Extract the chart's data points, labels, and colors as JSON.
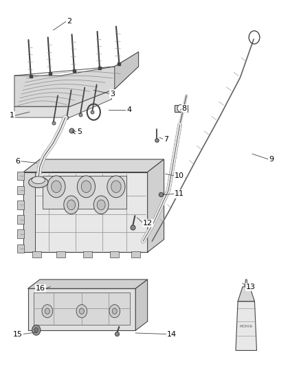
{
  "bg_color": "#ffffff",
  "lc": "#444444",
  "lc2": "#888888",
  "figsize": [
    4.38,
    5.33
  ],
  "dpi": 100,
  "label_positions": {
    "1": [
      0.045,
      0.685,
      0.095,
      0.695
    ],
    "2": [
      0.22,
      0.945,
      0.175,
      0.92
    ],
    "3": [
      0.365,
      0.745,
      0.31,
      0.755
    ],
    "4": [
      0.42,
      0.7,
      0.36,
      0.7
    ],
    "5": [
      0.255,
      0.64,
      0.24,
      0.645
    ],
    "6": [
      0.065,
      0.56,
      0.12,
      0.555
    ],
    "7": [
      0.545,
      0.62,
      0.53,
      0.625
    ],
    "8": [
      0.605,
      0.705,
      0.6,
      0.7
    ],
    "9": [
      0.895,
      0.565,
      0.84,
      0.58
    ],
    "10": [
      0.58,
      0.52,
      0.55,
      0.525
    ],
    "11": [
      0.58,
      0.47,
      0.545,
      0.468
    ],
    "12": [
      0.475,
      0.39,
      0.455,
      0.405
    ],
    "13": [
      0.82,
      0.215,
      0.808,
      0.225
    ],
    "14": [
      0.555,
      0.085,
      0.45,
      0.088
    ],
    "15": [
      0.072,
      0.085,
      0.12,
      0.09
    ],
    "16": [
      0.148,
      0.21,
      0.165,
      0.215
    ]
  }
}
